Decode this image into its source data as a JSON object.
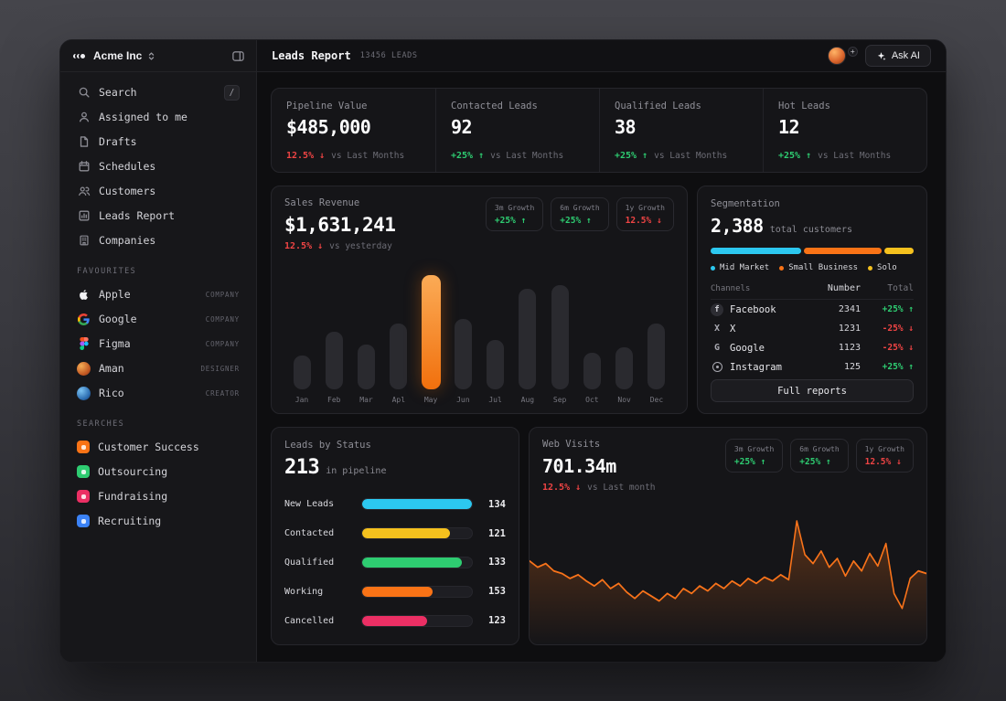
{
  "colors": {
    "green": "#2ecc71",
    "red": "#ef4444",
    "orange": "#f97316",
    "cyan": "#2cc8f0",
    "yellow": "#f5c11e",
    "pink": "#eb2f64",
    "blue": "#3b82f6"
  },
  "sidebar": {
    "brand": "Acme Inc",
    "menu": [
      {
        "label": "Search",
        "shortcut": "/"
      },
      {
        "label": "Assigned to me"
      },
      {
        "label": "Drafts"
      },
      {
        "label": "Schedules"
      },
      {
        "label": "Customers"
      },
      {
        "label": "Leads Report"
      },
      {
        "label": "Companies"
      }
    ],
    "favourites_label": "FAVOURITES",
    "favourites": [
      {
        "name": "Apple",
        "tag": "COMPANY"
      },
      {
        "name": "Google",
        "tag": "COMPANY"
      },
      {
        "name": "Figma",
        "tag": "COMPANY"
      },
      {
        "name": "Aman",
        "tag": "DESIGNER"
      },
      {
        "name": "Rico",
        "tag": "CREATOR"
      }
    ],
    "searches_label": "SEARCHES",
    "searches": [
      {
        "name": "Customer Success",
        "color": "#f97316"
      },
      {
        "name": "Outsourcing",
        "color": "#2ecc71"
      },
      {
        "name": "Fundraising",
        "color": "#eb2f64"
      },
      {
        "name": "Recruiting",
        "color": "#3b82f6"
      }
    ]
  },
  "topbar": {
    "title": "Leads Report",
    "meta": "13456 LEADS",
    "ask_ai": "Ask AI"
  },
  "stats": [
    {
      "label": "Pipeline Value",
      "value": "$485,000",
      "delta": "12.5% ↓",
      "trend": "down",
      "compare": "vs Last Months"
    },
    {
      "label": "Contacted Leads",
      "value": "92",
      "delta": "+25% ↑",
      "trend": "up",
      "compare": "vs Last Months"
    },
    {
      "label": "Qualified Leads",
      "value": "38",
      "delta": "+25% ↑",
      "trend": "up",
      "compare": "vs Last Months"
    },
    {
      "label": "Hot Leads",
      "value": "12",
      "delta": "+25% ↑",
      "trend": "up",
      "compare": "vs Last Months"
    }
  ],
  "sales": {
    "title": "Sales Revenue",
    "value": "$1,631,241",
    "delta": "12.5% ↓",
    "compare": "vs yesterday",
    "chips": [
      {
        "label": "3m Growth",
        "value": "+25% ↑",
        "trend": "up"
      },
      {
        "label": "6m Growth",
        "value": "+25% ↑",
        "trend": "up"
      },
      {
        "label": "1y Growth",
        "value": "12.5% ↓",
        "trend": "down"
      }
    ]
  },
  "segmentation": {
    "title": "Segmentation",
    "value": "2,388",
    "value_suffix": "total customers",
    "table": {
      "headers": [
        "Channels",
        "Number",
        "Total"
      ],
      "rows": [
        {
          "name": "Facebook",
          "number": "2341",
          "total": "+25% ↑",
          "trend": "up"
        },
        {
          "name": "X",
          "number": "1231",
          "total": "-25% ↓",
          "trend": "down"
        },
        {
          "name": "Google",
          "number": "1123",
          "total": "-25% ↓",
          "trend": "down"
        },
        {
          "name": "Instagram",
          "number": "125",
          "total": "+25% ↑",
          "trend": "up"
        }
      ]
    },
    "button": "Full reports"
  },
  "leads_status": {
    "title": "Leads by Status",
    "value": "213",
    "value_suffix": "in pipeline"
  },
  "web_visits": {
    "title": "Web Visits",
    "value": "701.34m",
    "delta": "12.5% ↓",
    "compare": "vs Last month",
    "chips": [
      {
        "label": "3m Growth",
        "value": "+25% ↑",
        "trend": "up"
      },
      {
        "label": "6m Growth",
        "value": "+25% ↑",
        "trend": "up"
      },
      {
        "label": "1y Growth",
        "value": "12.5% ↓",
        "trend": "down"
      }
    ]
  },
  "chart_data": [
    {
      "id": "sales_revenue_by_month",
      "type": "bar",
      "title": "Sales Revenue",
      "categories": [
        "Jan",
        "Feb",
        "Mar",
        "Apl",
        "May",
        "Jun",
        "Jul",
        "Aug",
        "Sep",
        "Oct",
        "Nov",
        "Dec"
      ],
      "values": [
        40,
        68,
        53,
        78,
        135,
        83,
        58,
        118,
        123,
        43,
        50,
        78
      ],
      "ylim": [
        0,
        140
      ],
      "highlight_index": 4,
      "highlight_color": "#f97316",
      "bar_color": "#2a2a2f"
    },
    {
      "id": "customer_segmentation",
      "type": "stacked_bar",
      "total": "2,388",
      "segments": [
        {
          "label": "Mid Market",
          "value": 46,
          "color": "#2cc8f0"
        },
        {
          "label": "Small Business",
          "value": 39,
          "color": "#f97316"
        },
        {
          "label": "Solo",
          "value": 15,
          "color": "#f5c11e"
        }
      ]
    },
    {
      "id": "leads_by_status",
      "type": "bar",
      "orientation": "horizontal",
      "categories": [
        "New Leads",
        "Contacted",
        "Qualified",
        "Working",
        "Cancelled"
      ],
      "values": [
        134,
        121,
        133,
        153,
        123
      ],
      "fill_percent": [
        100,
        80,
        91,
        64,
        59
      ],
      "colors": [
        "#2cc8f0",
        "#f5c11e",
        "#2ecc71",
        "#f97316",
        "#eb2f64"
      ]
    },
    {
      "id": "web_visits_trend",
      "type": "area",
      "color": "#f97316",
      "ylim": [
        0,
        100
      ],
      "values": [
        60,
        55,
        58,
        52,
        50,
        46,
        49,
        44,
        40,
        45,
        38,
        42,
        35,
        30,
        36,
        32,
        28,
        34,
        30,
        38,
        34,
        40,
        36,
        42,
        38,
        44,
        40,
        46,
        42,
        47,
        44,
        49,
        45,
        92,
        65,
        58,
        68,
        55,
        62,
        48,
        60,
        52,
        66,
        56,
        74,
        34,
        22,
        46,
        52,
        50
      ]
    }
  ]
}
